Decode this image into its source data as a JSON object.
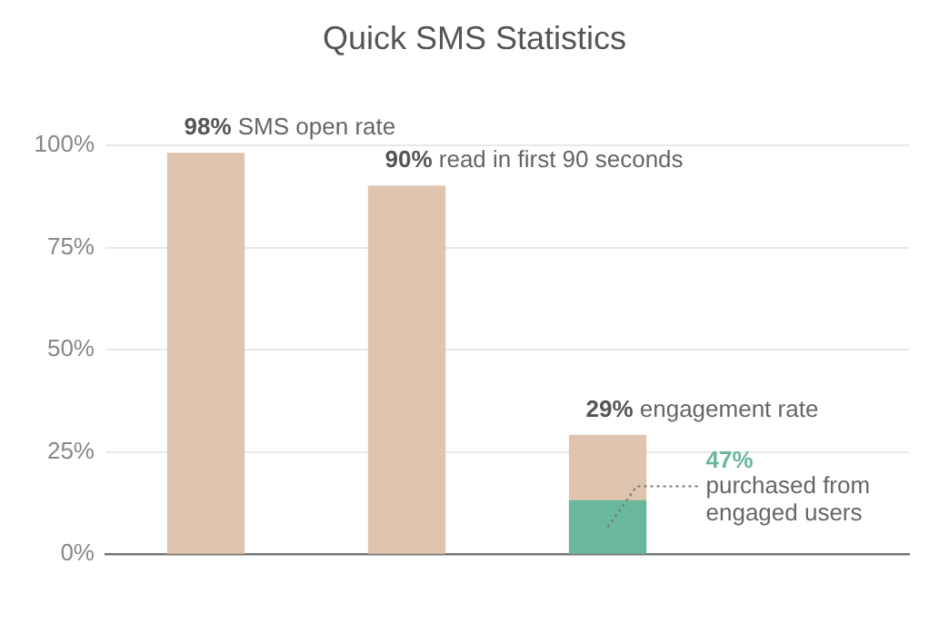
{
  "chart_data": {
    "type": "bar",
    "title": "Quick SMS Statistics",
    "categories": [
      null,
      null,
      null
    ],
    "stacked": true,
    "series": [
      {
        "color": "#6ab89b",
        "values": [
          null,
          null,
          13
        ]
      },
      {
        "color": "#dfc5b0",
        "values": [
          98,
          90,
          16
        ]
      }
    ],
    "totals": [
      "98%",
      "90%",
      "29%"
    ],
    "annotations": [
      "SMS open rate",
      "read in first 90 seconds",
      "engagement rate",
      "47% purchased from engaged users"
    ],
    "ylim": [
      0,
      100
    ],
    "yticks": [
      {
        "value": 0,
        "label": "0%"
      },
      {
        "value": 25,
        "label": "25%"
      },
      {
        "value": 50,
        "label": "50%"
      },
      {
        "value": 75,
        "label": "75%"
      },
      {
        "value": 100,
        "label": "100%"
      }
    ],
    "grid": "y"
  }
}
